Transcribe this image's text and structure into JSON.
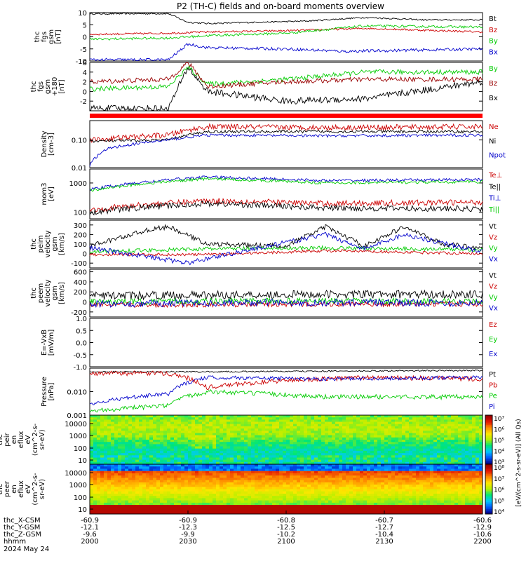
{
  "title": "P2 (TH-C) fields and on-board moments overview",
  "chart_data": {
    "type": "line",
    "title": "P2 (TH-C) fields and on-board moments overview",
    "x_ticks": [
      "2000",
      "2030",
      "2100",
      "2130",
      "2200"
    ],
    "date_label": "2024 May 24",
    "ephemeris": [
      {
        "label": "thc_X-CSM",
        "values": [
          "-60.9",
          "-60.9",
          "-60.8",
          "-60.7",
          "-60.6"
        ]
      },
      {
        "label": "thc_Y-GSM",
        "values": [
          "-12.1",
          "-12.3",
          "-12.5",
          "-12.7",
          "-12.9"
        ]
      },
      {
        "label": "thc_Z-GSM",
        "values": [
          "-9.6",
          "-9.9",
          "-10.2",
          "-10.4",
          "-10.6"
        ]
      },
      {
        "label": "hhmm",
        "values": [
          "2000",
          "2030",
          "2100",
          "2130",
          "2200"
        ]
      }
    ],
    "panels": [
      {
        "ylabel": [
          "thc",
          "fgs",
          "gsm",
          "[nT]"
        ],
        "ylim": [
          -10,
          10
        ],
        "log": false,
        "ticks": [
          "10",
          "5",
          "0",
          "-5",
          "-10"
        ],
        "series": [
          {
            "name": "Bt",
            "color": "#000000",
            "kp": [
              [
                0,
                9.5
              ],
              [
                0.2,
                9.6
              ],
              [
                0.25,
                6
              ],
              [
                0.3,
                5.5
              ],
              [
                0.55,
                6.5
              ],
              [
                0.7,
                8
              ],
              [
                0.85,
                7
              ],
              [
                1,
                7
              ]
            ],
            "noise": 0.3
          },
          {
            "name": "Bz",
            "color": "#cc0000",
            "kp": [
              [
                0,
                1
              ],
              [
                0.2,
                1.5
              ],
              [
                0.3,
                2
              ],
              [
                0.5,
                2.5
              ],
              [
                0.7,
                3.5
              ],
              [
                1,
                2
              ]
            ],
            "noise": 0.4
          },
          {
            "name": "By",
            "color": "#00cc00",
            "kp": [
              [
                0,
                -1
              ],
              [
                0.2,
                -0.5
              ],
              [
                0.3,
                0.5
              ],
              [
                0.5,
                1.5
              ],
              [
                0.7,
                4.5
              ],
              [
                1,
                4
              ]
            ],
            "noise": 0.5
          },
          {
            "name": "Bx",
            "color": "#0000cc",
            "kp": [
              [
                0,
                -9.5
              ],
              [
                0.2,
                -9.5
              ],
              [
                0.25,
                -3
              ],
              [
                0.3,
                -4.5
              ],
              [
                0.5,
                -5
              ],
              [
                0.65,
                -6
              ],
              [
                1,
                -5
              ]
            ],
            "noise": 0.6
          }
        ]
      },
      {
        "ylabel": [
          "thc",
          "fgs",
          "gsm",
          "+180",
          "[nT]"
        ],
        "ylim": [
          -4,
          6
        ],
        "log": false,
        "ticks": [
          "6",
          "4",
          "2",
          "0",
          "-2"
        ],
        "series": [
          {
            "name": "By",
            "color": "#00cc00",
            "kp": [
              [
                0,
                0.5
              ],
              [
                0.2,
                1
              ],
              [
                0.25,
                5
              ],
              [
                0.3,
                1.5
              ],
              [
                0.5,
                2.5
              ],
              [
                0.7,
                4
              ],
              [
                1,
                4
              ]
            ],
            "noise": 0.5
          },
          {
            "name": "Bz",
            "color": "#990000",
            "kp": [
              [
                0,
                2
              ],
              [
                0.2,
                2.5
              ],
              [
                0.25,
                6
              ],
              [
                0.3,
                1
              ],
              [
                0.5,
                2
              ],
              [
                0.7,
                2.5
              ],
              [
                1,
                2.5
              ]
            ],
            "noise": 0.5
          },
          {
            "name": "Bx",
            "color": "#000000",
            "kp": [
              [
                0,
                -3.5
              ],
              [
                0.2,
                -3.5
              ],
              [
                0.25,
                5
              ],
              [
                0.3,
                0
              ],
              [
                0.5,
                -2
              ],
              [
                0.7,
                -1.5
              ],
              [
                1,
                2
              ]
            ],
            "noise": 0.7
          }
        ]
      },
      {
        "ylabel": [
          "Density",
          "[cm-3]"
        ],
        "ylim": [
          0.01,
          0.5
        ],
        "log": true,
        "ticks": [
          "0.10",
          "0.01"
        ],
        "series": [
          {
            "name": "Ne",
            "color": "#cc0000",
            "kp": [
              [
                0,
                0.1
              ],
              [
                0.2,
                0.15
              ],
              [
                0.3,
                0.3
              ],
              [
                0.6,
                0.28
              ],
              [
                1,
                0.3
              ]
            ],
            "noise": 0.1
          },
          {
            "name": "Ni",
            "color": "#000000",
            "kp": [
              [
                0,
                0.09
              ],
              [
                0.2,
                0.1
              ],
              [
                0.3,
                0.2
              ],
              [
                0.6,
                0.2
              ],
              [
                1,
                0.2
              ]
            ],
            "noise": 0.05
          },
          {
            "name": "Npot",
            "color": "#0000cc",
            "kp": [
              [
                0,
                0.012
              ],
              [
                0.05,
                0.05
              ],
              [
                0.2,
                0.1
              ],
              [
                0.3,
                0.15
              ],
              [
                0.6,
                0.14
              ],
              [
                1,
                0.15
              ]
            ],
            "noise": 0.05
          }
        ]
      },
      {
        "ylabel": [
          "mom3",
          "[eV]"
        ],
        "ylim": [
          60,
          3000
        ],
        "log": true,
        "ticks": [
          "1000",
          "100"
        ],
        "series": [
          {
            "name": "Te⊥",
            "color": "#cc0000",
            "kp": [
              [
                0,
                120
              ],
              [
                0.3,
                250
              ],
              [
                0.6,
                200
              ],
              [
                1,
                220
              ]
            ],
            "noise": 0.1
          },
          {
            "name": "Te||",
            "color": "#000000",
            "kp": [
              [
                0,
                100
              ],
              [
                0.3,
                200
              ],
              [
                0.6,
                140
              ],
              [
                1,
                130
              ]
            ],
            "noise": 0.1
          },
          {
            "name": "Ti⊥",
            "color": "#0000cc",
            "kp": [
              [
                0,
                600
              ],
              [
                0.3,
                1600
              ],
              [
                0.6,
                1200
              ],
              [
                1,
                1300
              ]
            ],
            "noise": 0.05
          },
          {
            "name": "Ti||",
            "color": "#00cc00",
            "kp": [
              [
                0,
                550
              ],
              [
                0.3,
                1400
              ],
              [
                0.6,
                1000
              ],
              [
                1,
                1100
              ]
            ],
            "noise": 0.05
          }
        ]
      },
      {
        "ylabel": [
          "thc",
          "peim",
          "velocity",
          "gsm",
          "[km/s]"
        ],
        "ylim": [
          -150,
          350
        ],
        "log": false,
        "ticks": [
          "300",
          "200",
          "100",
          "0",
          "-100"
        ],
        "series": [
          {
            "name": "Vt",
            "color": "#000000",
            "kp": [
              [
                0,
                80
              ],
              [
                0.15,
                250
              ],
              [
                0.2,
                280
              ],
              [
                0.3,
                100
              ],
              [
                0.5,
                80
              ],
              [
                0.6,
                280
              ],
              [
                0.7,
                80
              ],
              [
                0.8,
                280
              ],
              [
                0.9,
                100
              ],
              [
                1,
                60
              ]
            ],
            "noise": 25
          },
          {
            "name": "Vz",
            "color": "#cc0000",
            "kp": [
              [
                0,
                -10
              ],
              [
                0.3,
                -10
              ],
              [
                0.6,
                30
              ],
              [
                1,
                0
              ]
            ],
            "noise": 15
          },
          {
            "name": "Vy",
            "color": "#00cc00",
            "kp": [
              [
                0,
                20
              ],
              [
                0.3,
                50
              ],
              [
                0.6,
                60
              ],
              [
                1,
                40
              ]
            ],
            "noise": 20
          },
          {
            "name": "Vx",
            "color": "#0000cc",
            "kp": [
              [
                0,
                60
              ],
              [
                0.25,
                -100
              ],
              [
                0.3,
                -50
              ],
              [
                0.6,
                200
              ],
              [
                0.7,
                50
              ],
              [
                0.8,
                200
              ],
              [
                1,
                20
              ]
            ],
            "noise": 25
          }
        ]
      },
      {
        "ylabel": [
          "thc",
          "peem",
          "velocity",
          "gsm",
          "[km/s]"
        ],
        "ylim": [
          -300,
          650
        ],
        "log": false,
        "ticks": [
          "600",
          "400",
          "200",
          "0",
          "-200"
        ],
        "series": [
          {
            "name": "Vt",
            "color": "#000000",
            "kp": [
              [
                0,
                120
              ],
              [
                0.5,
                150
              ],
              [
                1,
                150
              ]
            ],
            "noise": 80
          },
          {
            "name": "Vz",
            "color": "#cc0000",
            "kp": [
              [
                0,
                -60
              ],
              [
                0.5,
                -50
              ],
              [
                1,
                -40
              ]
            ],
            "noise": 50
          },
          {
            "name": "Vy",
            "color": "#00cc00",
            "kp": [
              [
                0,
                0
              ],
              [
                0.5,
                20
              ],
              [
                1,
                10
              ]
            ],
            "noise": 60
          },
          {
            "name": "Vx",
            "color": "#0000cc",
            "kp": [
              [
                0,
                -40
              ],
              [
                0.5,
                -10
              ],
              [
                1,
                -20
              ]
            ],
            "noise": 70
          }
        ]
      },
      {
        "ylabel": [
          "E=-VxB",
          "[mV/m]"
        ],
        "ylim": [
          -1.0,
          1.0
        ],
        "log": false,
        "ticks": [
          "1.0",
          "0.5",
          "0.0",
          "-0.5",
          "-1.0"
        ],
        "series": [
          {
            "name": "Ez",
            "color": "#cc0000",
            "kp": [],
            "noise": 0
          },
          {
            "name": "Ey",
            "color": "#00cc00",
            "kp": [],
            "noise": 0
          },
          {
            "name": "Ex",
            "color": "#0000cc",
            "kp": [],
            "noise": 0
          }
        ]
      },
      {
        "ylabel": [
          "Pressure",
          "[nPa]"
        ],
        "ylim": [
          0.001,
          0.1
        ],
        "log": true,
        "ticks": [
          "0.010",
          "0.001"
        ],
        "series": [
          {
            "name": "Pt",
            "color": "#000000",
            "kp": [
              [
                0,
                0.07
              ],
              [
                0.3,
                0.07
              ],
              [
                1,
                0.08
              ]
            ],
            "noise": 0.03
          },
          {
            "name": "Pb",
            "color": "#cc0000",
            "kp": [
              [
                0,
                0.06
              ],
              [
                0.2,
                0.06
              ],
              [
                0.3,
                0.015
              ],
              [
                0.5,
                0.03
              ],
              [
                0.7,
                0.04
              ],
              [
                1,
                0.035
              ]
            ],
            "noise": 0.1
          },
          {
            "name": "Pe",
            "color": "#00cc00",
            "kp": [
              [
                0,
                0.0015
              ],
              [
                0.2,
                0.0025
              ],
              [
                0.3,
                0.01
              ],
              [
                0.6,
                0.006
              ],
              [
                1,
                0.006
              ]
            ],
            "noise": 0.1
          },
          {
            "name": "Pi",
            "color": "#0000cc",
            "kp": [
              [
                0,
                0.003
              ],
              [
                0.2,
                0.008
              ],
              [
                0.3,
                0.04
              ],
              [
                0.6,
                0.035
              ],
              [
                1,
                0.04
              ]
            ],
            "noise": 0.08
          }
        ]
      }
    ],
    "spectrograms": [
      {
        "ylabel": [
          "thc",
          "peir",
          "en",
          "eflux",
          "eV",
          "(cm^2-s-",
          "sr-eV)"
        ],
        "ticks": [
          "10000",
          "1000",
          "100",
          "10"
        ]
      },
      {
        "ylabel": [
          "thc",
          "peer",
          "en",
          "eflux",
          "eV",
          "(cm^2-s-",
          "sr-eV)"
        ],
        "ticks": [
          "10000",
          "1000",
          "100",
          "10"
        ]
      }
    ],
    "colorbar": {
      "top_ticks": [
        "10⁷",
        "10⁶",
        "10⁵",
        "10⁴",
        "10³"
      ],
      "bottom_ticks": [
        "10⁸",
        "10⁷",
        "10⁶",
        "10⁵",
        "10⁴"
      ],
      "label": "[eV/(cm^2-s-sr-eV)] (All Qs)"
    }
  }
}
